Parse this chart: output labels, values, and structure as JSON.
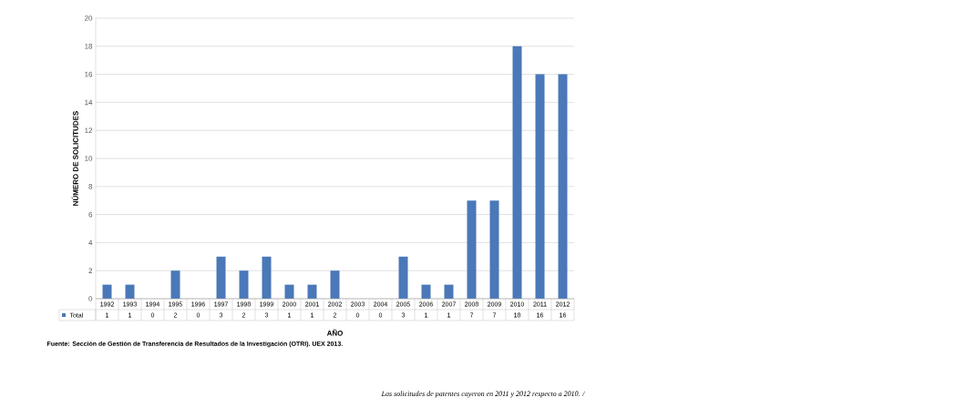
{
  "chart_data": {
    "type": "bar",
    "xlabel": "AÑO",
    "ylabel": "NÚMERO DE SOLICITUDES",
    "categories": [
      "1992",
      "1993",
      "1994",
      "1995",
      "1996",
      "1997",
      "1998",
      "1999",
      "2000",
      "2001",
      "2002",
      "2003",
      "2004",
      "2005",
      "2006",
      "2007",
      "2008",
      "2009",
      "2010",
      "2011",
      "2012"
    ],
    "series": [
      {
        "name": "Total",
        "color": "#4a78b8",
        "values": [
          1,
          1,
          0,
          2,
          0,
          3,
          2,
          3,
          1,
          1,
          2,
          0,
          0,
          3,
          1,
          1,
          7,
          7,
          18,
          16,
          16
        ]
      }
    ],
    "ylim": [
      0,
      20
    ],
    "yticks": [
      0,
      2,
      4,
      6,
      8,
      10,
      12,
      14,
      16,
      18,
      20
    ],
    "grid": "y",
    "legend": "bottom",
    "data_labels": true,
    "annotations": [
      "Fuente: Sección de Gestión de Transferencia de  Resultados de la Investigación (OTRI). UEX 2013.",
      "Las solicitudes de patentes cayeron en 2011 y 2012 respecto a 2010. /"
    ]
  }
}
